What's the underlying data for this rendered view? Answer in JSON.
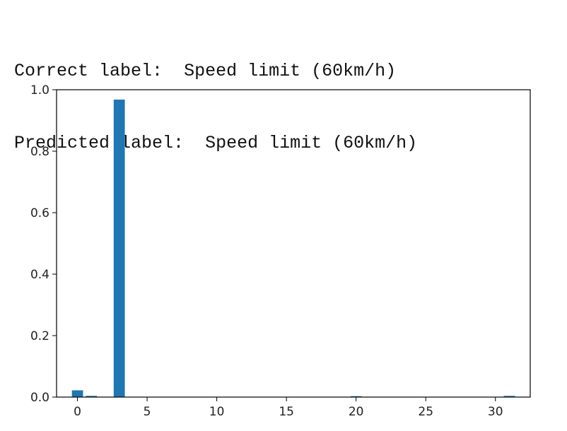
{
  "output": {
    "correct_prefix": "Correct label:",
    "correct_value": "Speed limit (60km/h)",
    "predicted_prefix": "Predicted label:",
    "predicted_value": "Speed limit (60km/h)"
  },
  "chart_data": {
    "type": "bar",
    "title": "",
    "xlabel": "",
    "ylabel": "",
    "bar_color": "#1f77b4",
    "x": [
      0,
      1,
      3,
      20,
      31
    ],
    "values": [
      0.022,
      0.004,
      0.968,
      0.003,
      0.004
    ],
    "xlim": [
      -1.5,
      32.5
    ],
    "ylim": [
      0,
      1.0
    ],
    "xticks": [
      0,
      5,
      10,
      15,
      20,
      25,
      30
    ],
    "yticks": [
      0.0,
      0.2,
      0.4,
      0.6,
      0.8,
      1.0
    ],
    "ytick_labels": [
      "0.0",
      "0.2",
      "0.4",
      "0.6",
      "0.8",
      "1.0"
    ],
    "grid": false,
    "legend": "none"
  }
}
